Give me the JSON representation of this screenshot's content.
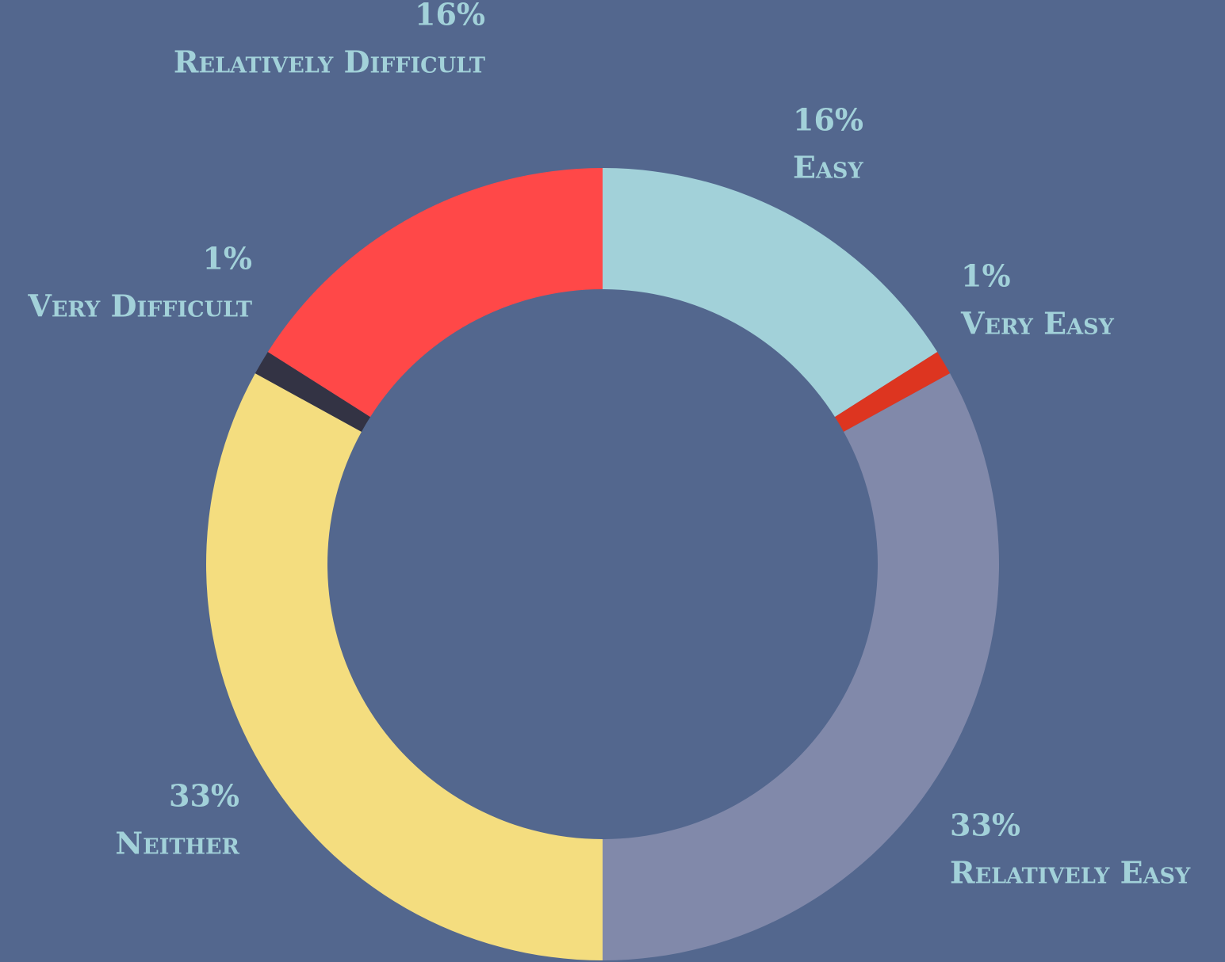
{
  "chart_data": {
    "type": "donut",
    "categories": [
      "Easy",
      "Very Easy",
      "Relatively Easy",
      "Neither",
      "Very Difficult",
      "Relatively Difficult"
    ],
    "values": [
      16,
      1,
      33,
      33,
      1,
      16
    ],
    "value_labels": [
      "16%",
      "1%",
      "33%",
      "33%",
      "1%",
      "16%"
    ],
    "colors": [
      "#a2d1d9",
      "#dd3520",
      "#8189aa",
      "#f4dd7f",
      "#333344",
      "#ff4848"
    ]
  }
}
